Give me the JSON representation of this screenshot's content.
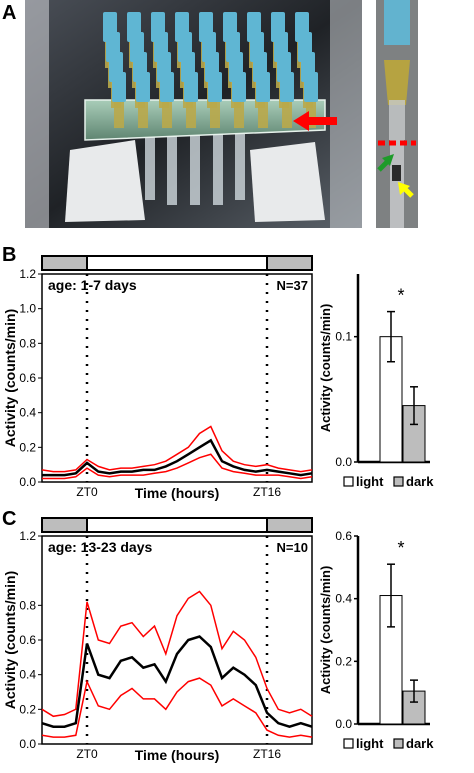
{
  "panels": {
    "a": "A",
    "b": "B",
    "c": "C"
  },
  "colors": {
    "mean": "#000000",
    "error": "#ff0000",
    "light_bar": "#ffffff",
    "dark_bar": "#bdbdbd",
    "arrow_red": "#ff0000",
    "arrow_green": "#1e9b2a",
    "arrow_yellow": "#ffff00"
  },
  "photo": {
    "icons": [
      "tube-rack-photo",
      "red-arrow-icon",
      "green-arrow-icon",
      "yellow-arrow-icon"
    ]
  },
  "chart_data": [
    {
      "panel": "B",
      "type": "line",
      "annotation_left": "age: 1-7 days",
      "annotation_right": "N=37",
      "xlabel": "Time (hours)",
      "ylabel": "Activity (counts/min)",
      "xticks": [
        "ZT0",
        "ZT16"
      ],
      "yticks": [
        "0.0",
        "0.2",
        "0.4",
        "0.6",
        "0.8",
        "1.0",
        "1.2"
      ],
      "ylim": [
        0,
        1.2
      ],
      "x": [
        -4,
        -3,
        -2,
        -1,
        0,
        1,
        2,
        3,
        4,
        5,
        6,
        7,
        8,
        9,
        10,
        11,
        12,
        13,
        14,
        15,
        16,
        17,
        18,
        19,
        20
      ],
      "series": [
        {
          "role": "upper",
          "values": [
            0.07,
            0.06,
            0.06,
            0.07,
            0.13,
            0.09,
            0.07,
            0.08,
            0.08,
            0.09,
            0.1,
            0.12,
            0.16,
            0.2,
            0.28,
            0.32,
            0.18,
            0.12,
            0.1,
            0.09,
            0.1,
            0.08,
            0.07,
            0.06,
            0.07
          ]
        },
        {
          "role": "mean",
          "values": [
            0.04,
            0.04,
            0.04,
            0.05,
            0.11,
            0.06,
            0.05,
            0.06,
            0.06,
            0.07,
            0.07,
            0.09,
            0.12,
            0.16,
            0.2,
            0.24,
            0.12,
            0.09,
            0.07,
            0.06,
            0.07,
            0.06,
            0.05,
            0.04,
            0.05
          ]
        },
        {
          "role": "lower",
          "values": [
            0.02,
            0.02,
            0.02,
            0.03,
            0.08,
            0.04,
            0.03,
            0.04,
            0.04,
            0.04,
            0.05,
            0.06,
            0.08,
            0.11,
            0.14,
            0.16,
            0.08,
            0.06,
            0.05,
            0.04,
            0.04,
            0.04,
            0.03,
            0.02,
            0.03
          ]
        }
      ],
      "light_period": [
        0,
        16
      ]
    },
    {
      "panel": "B",
      "type": "bar",
      "categories": [
        "light",
        "dark"
      ],
      "values": [
        0.1,
        0.045
      ],
      "errors": [
        0.02,
        0.015
      ],
      "ylabel": "Activity (counts/min)",
      "yticks": [
        "0.0",
        "0.1"
      ],
      "ylim": [
        0,
        0.15
      ],
      "significance": "*"
    },
    {
      "panel": "C",
      "type": "line",
      "annotation_left": "age: 13-23 days",
      "annotation_right": "N=10",
      "xlabel": "Time (hours)",
      "ylabel": "Activity (counts/min)",
      "xticks": [
        "ZT0",
        "ZT16"
      ],
      "yticks": [
        "0.0",
        "0.2",
        "0.4",
        "0.6",
        "0.8",
        "1.2"
      ],
      "ylim": [
        0,
        1.2
      ],
      "x": [
        -4,
        -3,
        -2,
        -1,
        0,
        1,
        2,
        3,
        4,
        5,
        6,
        7,
        8,
        9,
        10,
        11,
        12,
        13,
        14,
        15,
        16,
        17,
        18,
        19,
        20
      ],
      "series": [
        {
          "role": "upper",
          "values": [
            0.2,
            0.16,
            0.17,
            0.2,
            0.82,
            0.6,
            0.58,
            0.68,
            0.7,
            0.62,
            0.68,
            0.52,
            0.74,
            0.84,
            0.88,
            0.8,
            0.55,
            0.65,
            0.6,
            0.5,
            0.32,
            0.2,
            0.18,
            0.2,
            0.16
          ]
        },
        {
          "role": "mean",
          "values": [
            0.12,
            0.1,
            0.1,
            0.12,
            0.58,
            0.4,
            0.38,
            0.48,
            0.5,
            0.44,
            0.46,
            0.36,
            0.52,
            0.6,
            0.62,
            0.56,
            0.38,
            0.44,
            0.4,
            0.34,
            0.18,
            0.12,
            0.1,
            0.12,
            0.1
          ]
        },
        {
          "role": "lower",
          "values": [
            0.05,
            0.04,
            0.04,
            0.05,
            0.36,
            0.22,
            0.2,
            0.28,
            0.32,
            0.26,
            0.26,
            0.2,
            0.3,
            0.36,
            0.38,
            0.34,
            0.22,
            0.26,
            0.22,
            0.18,
            0.08,
            0.05,
            0.04,
            0.05,
            0.04
          ]
        }
      ],
      "light_period": [
        0,
        16
      ]
    },
    {
      "panel": "C",
      "type": "bar",
      "categories": [
        "light",
        "dark"
      ],
      "values": [
        0.41,
        0.105
      ],
      "errors": [
        0.1,
        0.035
      ],
      "ylabel": "Activity (counts/min)",
      "yticks": [
        "0.0",
        "0.2",
        "0.4",
        "0.6"
      ],
      "ylim": [
        0,
        0.6
      ],
      "significance": "*"
    }
  ]
}
